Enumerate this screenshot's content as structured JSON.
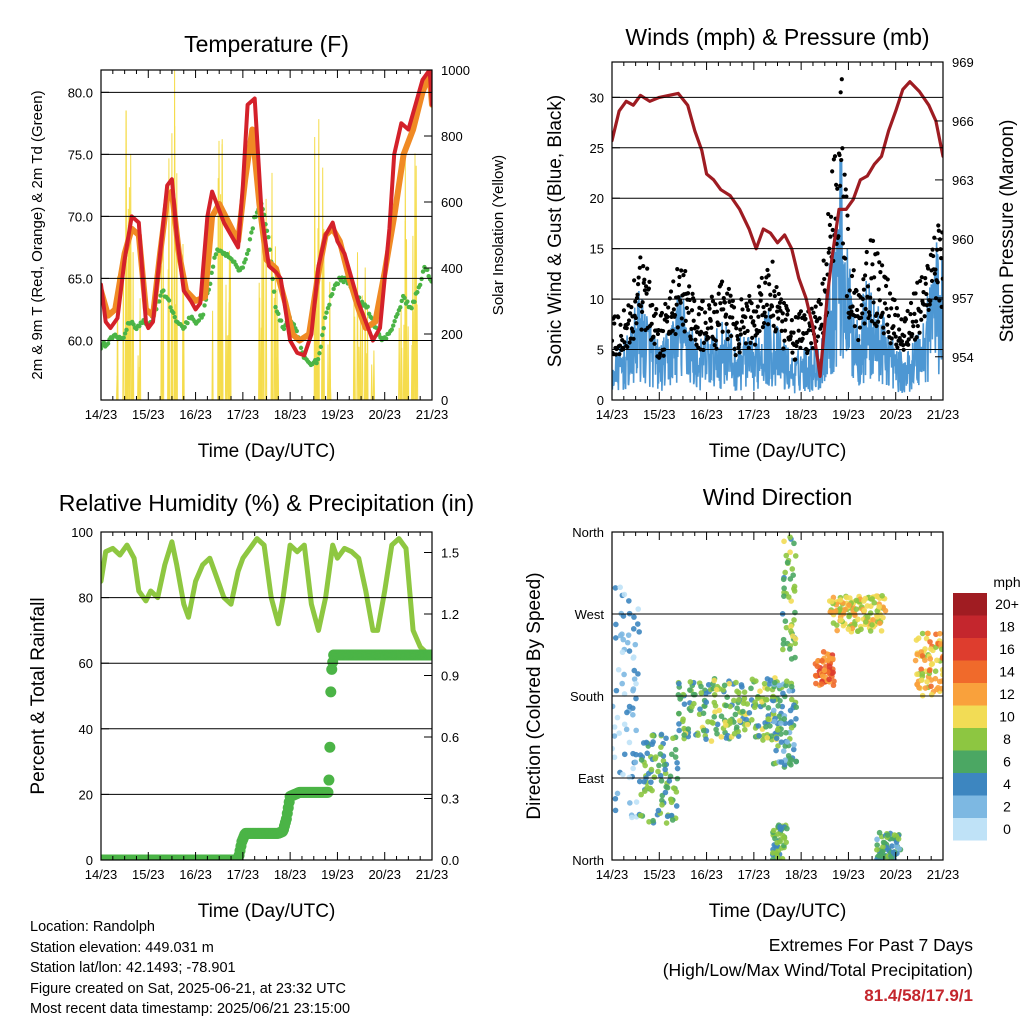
{
  "chart_data": [
    {
      "type": "line",
      "title": "Temperature (F)",
      "xlabel": "Time (Day/UTC)",
      "ylabel": "2m & 9m T (Red, Orange) & 2m Td (Green)",
      "y2label": "Solar Insolation (Yellow)",
      "x_ticks": [
        "14/23",
        "15/23",
        "16/23",
        "17/23",
        "18/23",
        "19/23",
        "20/23",
        "21/23"
      ],
      "ylim": [
        55.2,
        81.8
      ],
      "y_ticks": [
        "60.0",
        "65.0",
        "70.0",
        "75.0",
        "80.0"
      ],
      "y2lim": [
        0,
        1000
      ],
      "y2_ticks": [
        "0",
        "200",
        "400",
        "600",
        "800",
        "1000"
      ],
      "grid": "horizontal at major y ticks",
      "series": [
        {
          "color": "#d4212a",
          "x": [
            0,
            0.1,
            0.2,
            0.35,
            0.5,
            0.65,
            0.8,
            0.95,
            1.0,
            1.1,
            1.25,
            1.4,
            1.5,
            1.6,
            1.75,
            1.9,
            2.0,
            2.1,
            2.25,
            2.35,
            2.5,
            2.6,
            2.75,
            2.9,
            3.0,
            3.1,
            3.25,
            3.4,
            3.55,
            3.7,
            3.8,
            3.9,
            4.0,
            4.15,
            4.3,
            4.45,
            4.6,
            4.75,
            4.9,
            5.0,
            5.15,
            5.3,
            5.45,
            5.6,
            5.75,
            5.9,
            6.0,
            6.1,
            6.2,
            6.35,
            6.5,
            6.65,
            6.8,
            6.95,
            7.0
          ],
          "y": [
            64.5,
            61.5,
            61.0,
            61.8,
            66.5,
            70.0,
            69.5,
            61.5,
            61.0,
            61.5,
            67.0,
            72.5,
            73.0,
            68.5,
            64.0,
            63.2,
            62.5,
            63.0,
            70.0,
            72.0,
            70.5,
            69.5,
            68.5,
            67.5,
            72.5,
            79.0,
            79.5,
            70.0,
            66.0,
            65.5,
            65.0,
            62.5,
            60.0,
            59.0,
            58.8,
            60.5,
            66.0,
            68.5,
            69.5,
            68.0,
            67.0,
            65.0,
            63.0,
            61.5,
            60.0,
            61.0,
            65.0,
            69.0,
            75.0,
            77.5,
            77.0,
            79.0,
            81.0,
            81.8,
            79.0
          ]
        },
        {
          "color": "#f08a24",
          "x": [
            0,
            0.15,
            0.3,
            0.5,
            0.65,
            0.8,
            0.95,
            1.1,
            1.25,
            1.4,
            1.5,
            1.65,
            1.8,
            2.0,
            2.2,
            2.35,
            2.5,
            2.7,
            2.9,
            3.05,
            3.2,
            3.35,
            3.5,
            3.7,
            3.9,
            4.05,
            4.2,
            4.4,
            4.6,
            4.75,
            4.9,
            5.05,
            5.25,
            5.45,
            5.6,
            5.8,
            6.0,
            6.2,
            6.4,
            6.6,
            6.8,
            6.95,
            7.0
          ],
          "y": [
            64.0,
            62.0,
            62.5,
            67.0,
            69.0,
            68.5,
            62.5,
            62.0,
            67.0,
            71.5,
            72.0,
            67.0,
            64.0,
            63.2,
            63.5,
            70.0,
            71.0,
            69.5,
            68.0,
            73.0,
            77.0,
            71.0,
            66.5,
            65.8,
            63.0,
            60.5,
            60.0,
            60.5,
            65.5,
            68.5,
            69.0,
            68.0,
            65.0,
            62.5,
            61.0,
            61.5,
            65.5,
            70.0,
            75.0,
            77.0,
            80.0,
            81.5,
            79.0
          ]
        },
        {
          "color": "#4bb446",
          "x": [
            0,
            0.15,
            0.3,
            0.45,
            0.6,
            0.75,
            0.9,
            1.0,
            1.15,
            1.3,
            1.45,
            1.6,
            1.75,
            1.9,
            2.0,
            2.15,
            2.3,
            2.45,
            2.6,
            2.8,
            2.95,
            3.1,
            3.25,
            3.4,
            3.55,
            3.7,
            3.85,
            4.0,
            4.15,
            4.3,
            4.45,
            4.6,
            4.75,
            4.9,
            5.05,
            5.2,
            5.35,
            5.5,
            5.65,
            5.8,
            5.95,
            6.1,
            6.25,
            6.4,
            6.55,
            6.7,
            6.85,
            7.0
          ],
          "y": [
            59.5,
            59.8,
            60.5,
            60.0,
            61.5,
            61.0,
            61.5,
            61.0,
            62.5,
            64.0,
            63.0,
            61.5,
            61.0,
            62.0,
            61.5,
            62.0,
            64.5,
            67.5,
            67.0,
            66.5,
            65.5,
            67.0,
            70.0,
            71.0,
            68.0,
            62.5,
            61.0,
            61.8,
            60.5,
            58.5,
            58.0,
            58.5,
            62.0,
            64.0,
            65.0,
            64.8,
            64.0,
            63.0,
            62.5,
            61.0,
            60.0,
            60.5,
            62.0,
            63.5,
            62.5,
            64.0,
            66.0,
            64.5
          ]
        },
        {
          "color": "#f5dc4c",
          "type": "area",
          "peaks_x": [
            0.58,
            1.52,
            2.55,
            3.55,
            4.6,
            5.55,
            6.55
          ],
          "peaks_y": [
            940,
            1060,
            870,
            780,
            920,
            590,
            1080
          ]
        }
      ]
    },
    {
      "type": "line",
      "title": "Winds (mph) & Pressure (mb)",
      "xlabel": "Time (Day/UTC)",
      "ylabel": "Sonic Wind & Gust (Blue, Black)",
      "y2label": "Station Pressure (Maroon)",
      "x_ticks": [
        "14/23",
        "15/23",
        "16/23",
        "17/23",
        "18/23",
        "19/23",
        "20/23",
        "21/23"
      ],
      "ylim": [
        0,
        33.5
      ],
      "y_ticks": [
        "0",
        "5",
        "10",
        "15",
        "20",
        "25",
        "30"
      ],
      "y2lim": [
        951.8,
        969.0
      ],
      "y2_ticks": [
        "954",
        "957",
        "960",
        "963",
        "966",
        "969"
      ],
      "grid": "horizontal at major y ticks",
      "series": [
        {
          "color": "#4d97d3",
          "x": [
            0,
            0.2,
            0.4,
            0.55,
            0.7,
            0.9,
            1.0,
            1.2,
            1.4,
            1.6,
            1.8,
            2.0,
            2.2,
            2.4,
            2.6,
            2.8,
            3.0,
            3.2,
            3.4,
            3.55,
            3.7,
            3.85,
            4.0,
            4.2,
            4.4,
            4.6,
            4.75,
            4.85,
            5.0,
            5.2,
            5.4,
            5.6,
            5.8,
            6.0,
            6.2,
            6.4,
            6.6,
            6.8,
            7.0
          ],
          "y": [
            3,
            4,
            5,
            8,
            7,
            5,
            4,
            5,
            8,
            7,
            4,
            5,
            5,
            6,
            4,
            5,
            4,
            7,
            6,
            5,
            4,
            3,
            4,
            4,
            4,
            10,
            15,
            18,
            10,
            6,
            9,
            7,
            6,
            4,
            3,
            5,
            6,
            12,
            10
          ]
        },
        {
          "color": "#000000",
          "x": [
            0,
            0.2,
            0.4,
            0.55,
            0.7,
            0.9,
            1.0,
            1.2,
            1.4,
            1.6,
            1.8,
            2.0,
            2.2,
            2.4,
            2.6,
            2.8,
            3.0,
            3.2,
            3.4,
            3.55,
            3.7,
            3.85,
            4.0,
            4.2,
            4.4,
            4.6,
            4.75,
            4.85,
            5.0,
            5.2,
            5.4,
            5.6,
            5.8,
            6.0,
            6.2,
            6.4,
            6.6,
            6.8,
            7.0
          ],
          "y": [
            7,
            8,
            9,
            13,
            12,
            9,
            7,
            9,
            12,
            11,
            8,
            9,
            9,
            11,
            8,
            9,
            9,
            12,
            12,
            9,
            8,
            7,
            8,
            8,
            9,
            18,
            26,
            30,
            14,
            10,
            15,
            13,
            11,
            9,
            8,
            10,
            11,
            17,
            15
          ]
        },
        {
          "color": "#9e1c22",
          "x": [
            0,
            0.15,
            0.3,
            0.45,
            0.6,
            0.8,
            1.0,
            1.2,
            1.4,
            1.6,
            1.75,
            1.9,
            2.0,
            2.15,
            2.3,
            2.5,
            2.7,
            2.9,
            3.05,
            3.2,
            3.35,
            3.5,
            3.65,
            3.8,
            3.95,
            4.1,
            4.25,
            4.4,
            4.55,
            4.65,
            4.8,
            4.95,
            5.1,
            5.25,
            5.4,
            5.55,
            5.7,
            5.85,
            6.0,
            6.15,
            6.3,
            6.5,
            6.7,
            6.85,
            7.0
          ],
          "y": [
            965.0,
            966.5,
            967.0,
            966.8,
            967.3,
            967.0,
            967.2,
            967.3,
            967.4,
            966.8,
            965.5,
            964.5,
            963.3,
            963.0,
            962.5,
            962.2,
            961.5,
            960.5,
            959.5,
            960.5,
            960.3,
            959.8,
            960.2,
            959.5,
            958.0,
            957.0,
            955.5,
            953.0,
            957.0,
            959.0,
            961.5,
            961.5,
            962.0,
            963.0,
            963.2,
            963.8,
            964.2,
            965.5,
            966.5,
            967.6,
            968.0,
            967.5,
            966.8,
            966.0,
            964.2
          ]
        }
      ]
    },
    {
      "type": "line",
      "title": "Relative Humidity (%) & Precipitation (in)",
      "xlabel": "Time (Day/UTC)",
      "ylabel": "Percent & Total Rainfall",
      "x_ticks": [
        "14/23",
        "15/23",
        "16/23",
        "17/23",
        "18/23",
        "19/23",
        "20/23",
        "21/23"
      ],
      "ylim": [
        0,
        100
      ],
      "y_ticks": [
        "0",
        "20",
        "40",
        "60",
        "80",
        "100"
      ],
      "y2lim": [
        0,
        1.6
      ],
      "y2_ticks": [
        "0.0",
        "0.3",
        "0.6",
        "0.9",
        "1.2",
        "1.5"
      ],
      "grid": "horizontal at major y ticks",
      "series": [
        {
          "color": "#8ec741",
          "x": [
            0,
            0.1,
            0.25,
            0.4,
            0.55,
            0.7,
            0.8,
            0.95,
            1.05,
            1.2,
            1.35,
            1.5,
            1.6,
            1.75,
            1.85,
            2.0,
            2.15,
            2.3,
            2.45,
            2.6,
            2.75,
            2.9,
            3.0,
            3.15,
            3.3,
            3.45,
            3.6,
            3.75,
            3.85,
            4.0,
            4.15,
            4.3,
            4.45,
            4.6,
            4.75,
            4.9,
            5.0,
            5.15,
            5.3,
            5.45,
            5.6,
            5.75,
            5.85,
            6.0,
            6.15,
            6.3,
            6.45,
            6.6,
            6.75,
            6.9,
            7.0
          ],
          "y": [
            85,
            94,
            95,
            93,
            96,
            92,
            82,
            79,
            82,
            80,
            90,
            97,
            90,
            78,
            74,
            85,
            90,
            92,
            86,
            80,
            78,
            88,
            92,
            95,
            98,
            96,
            80,
            72,
            80,
            96,
            94,
            96,
            78,
            70,
            80,
            96,
            92,
            95,
            94,
            92,
            82,
            70,
            70,
            82,
            96,
            98,
            95,
            70,
            65,
            63,
            63
          ]
        },
        {
          "color": "#4bb446",
          "type": "scatter",
          "x": [
            0,
            1.0,
            2.0,
            2.9,
            2.98,
            3.05,
            3.2,
            3.4,
            3.6,
            3.75,
            3.85,
            3.92,
            4.0,
            4.2,
            4.5,
            4.8,
            4.82,
            4.84,
            4.86,
            4.88,
            4.92,
            5.0,
            5.5,
            6.0,
            6.5,
            7.0
          ],
          "y": [
            0,
            0,
            0,
            0,
            0.09,
            0.13,
            0.13,
            0.13,
            0.13,
            0.13,
            0.14,
            0.2,
            0.31,
            0.33,
            0.33,
            0.33,
            0.39,
            0.55,
            0.82,
            0.93,
            1.0,
            1.0,
            1.0,
            1.0,
            1.0,
            1.0
          ]
        }
      ]
    },
    {
      "type": "scatter",
      "title": "Wind Direction",
      "xlabel": "Time (Day/UTC)",
      "ylabel": "Direction (Colored By Speed)",
      "x_ticks": [
        "14/23",
        "15/23",
        "16/23",
        "17/23",
        "18/23",
        "19/23",
        "20/23",
        "21/23"
      ],
      "y_ticks": [
        "North",
        "East",
        "South",
        "West",
        "North"
      ],
      "ylim": [
        0,
        360
      ],
      "grid": "horizontal at major y ticks",
      "legend": "right",
      "colorbar": {
        "title": "mph",
        "labels": [
          "20+",
          "18",
          "16",
          "14",
          "12",
          "10",
          "8",
          "6",
          "4",
          "2",
          "0"
        ],
        "colors": [
          "#a01c22",
          "#c4262d",
          "#de3d2e",
          "#f06a2b",
          "#f9a13c",
          "#f2dc55",
          "#8dc641",
          "#4ba763",
          "#3d86c0",
          "#7db8e2",
          "#bfe2f7"
        ]
      },
      "clusters": [
        {
          "x": [
            0,
            0.6
          ],
          "y": [
            45,
            300
          ],
          "speed": 2
        },
        {
          "x": [
            0.6,
            1.4
          ],
          "y": [
            40,
            140
          ],
          "speed": 6
        },
        {
          "x": [
            1.4,
            3.6
          ],
          "y": [
            130,
            200
          ],
          "speed": 7
        },
        {
          "x": [
            3.4,
            3.9
          ],
          "y": [
            100,
            200
          ],
          "speed": 5
        },
        {
          "x": [
            3.4,
            3.7
          ],
          "y": [
            0,
            40
          ],
          "speed": 6
        },
        {
          "x": [
            3.6,
            3.9
          ],
          "y": [
            220,
            360
          ],
          "speed": 7
        },
        {
          "x": [
            4.3,
            4.7
          ],
          "y": [
            190,
            230
          ],
          "speed": 14
        },
        {
          "x": [
            4.6,
            5.8
          ],
          "y": [
            250,
            290
          ],
          "speed": 10
        },
        {
          "x": [
            5.6,
            6.1
          ],
          "y": [
            0,
            30
          ],
          "speed": 5
        },
        {
          "x": [
            6.4,
            7.0
          ],
          "y": [
            180,
            250
          ],
          "speed": 11
        }
      ]
    }
  ],
  "info": {
    "location": "Location: Randolph",
    "elevation": "Station elevation: 449.031 m",
    "latlon": "Station lat/lon: 42.1493; -78.901",
    "created": "Figure created on Sat, 2025-06-21, at 23:32 UTC",
    "recent": "Most recent data timestamp: 2025/06/21 23:15:00"
  },
  "extremes": {
    "line1": "Extremes For Past 7 Days",
    "line2": "(High/Low/Max Wind/Total Precipitation)",
    "values": "81.4/58/17.9/1"
  }
}
